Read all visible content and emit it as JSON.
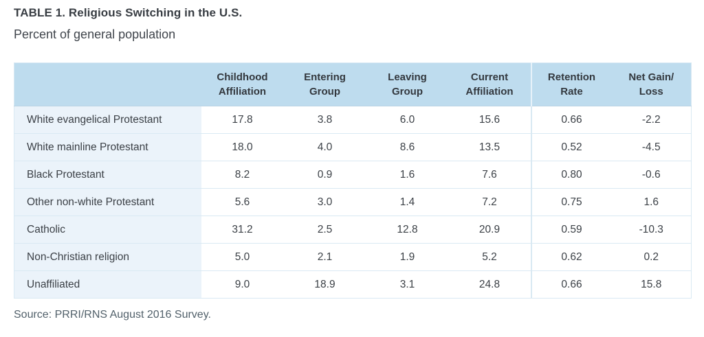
{
  "title": "TABLE 1. Religious Switching in the U.S.",
  "subtitle": "Percent of general population",
  "source": "Source: PRRI/RNS August 2016 Survey.",
  "colors": {
    "header_bg": "#bedcee",
    "label_col_bg": "#ebf3fa",
    "grid_line": "#d9e9f3",
    "text": "#3b4046",
    "source_text": "#51606a"
  },
  "table": {
    "columns": [
      {
        "line1": "",
        "line2": ""
      },
      {
        "line1": "Childhood",
        "line2": "Affiliation"
      },
      {
        "line1": "Entering",
        "line2": "Group"
      },
      {
        "line1": "Leaving",
        "line2": "Group"
      },
      {
        "line1": "Current",
        "line2": "Affiliation"
      },
      {
        "line1": "Retention",
        "line2": "Rate"
      },
      {
        "line1": "Net Gain/",
        "line2": "Loss"
      }
    ],
    "rows": [
      {
        "label": "White evangelical Protestant",
        "values": [
          "17.8",
          "3.8",
          "6.0",
          "15.6",
          "0.66",
          "-2.2"
        ]
      },
      {
        "label": "White mainline Protestant",
        "values": [
          "18.0",
          "4.0",
          "8.6",
          "13.5",
          "0.52",
          "-4.5"
        ]
      },
      {
        "label": "Black Protestant",
        "values": [
          "8.2",
          "0.9",
          "1.6",
          "7.6",
          "0.80",
          "-0.6"
        ]
      },
      {
        "label": "Other non-white Protestant",
        "values": [
          "5.6",
          "3.0",
          "1.4",
          "7.2",
          "0.75",
          "1.6"
        ]
      },
      {
        "label": "Catholic",
        "values": [
          "31.2",
          "2.5",
          "12.8",
          "20.9",
          "0.59",
          "-10.3"
        ]
      },
      {
        "label": "Non-Christian religion",
        "values": [
          "5.0",
          "2.1",
          "1.9",
          "5.2",
          "0.62",
          "0.2"
        ]
      },
      {
        "label": "Unaffiliated",
        "values": [
          "9.0",
          "18.9",
          "3.1",
          "24.8",
          "0.66",
          "15.8"
        ]
      }
    ]
  },
  "chart_data": {
    "type": "table",
    "title": "TABLE 1. Religious Switching in the U.S.",
    "subtitle": "Percent of general population",
    "columns": [
      "Childhood Affiliation",
      "Entering Group",
      "Leaving Group",
      "Current Affiliation",
      "Retention Rate",
      "Net Gain/Loss"
    ],
    "rows": [
      {
        "group": "White evangelical Protestant",
        "childhood_affiliation": 17.8,
        "entering_group": 3.8,
        "leaving_group": 6.0,
        "current_affiliation": 15.6,
        "retention_rate": 0.66,
        "net_gain_loss": -2.2
      },
      {
        "group": "White mainline Protestant",
        "childhood_affiliation": 18.0,
        "entering_group": 4.0,
        "leaving_group": 8.6,
        "current_affiliation": 13.5,
        "retention_rate": 0.52,
        "net_gain_loss": -4.5
      },
      {
        "group": "Black Protestant",
        "childhood_affiliation": 8.2,
        "entering_group": 0.9,
        "leaving_group": 1.6,
        "current_affiliation": 7.6,
        "retention_rate": 0.8,
        "net_gain_loss": -0.6
      },
      {
        "group": "Other non-white Protestant",
        "childhood_affiliation": 5.6,
        "entering_group": 3.0,
        "leaving_group": 1.4,
        "current_affiliation": 7.2,
        "retention_rate": 0.75,
        "net_gain_loss": 1.6
      },
      {
        "group": "Catholic",
        "childhood_affiliation": 31.2,
        "entering_group": 2.5,
        "leaving_group": 12.8,
        "current_affiliation": 20.9,
        "retention_rate": 0.59,
        "net_gain_loss": -10.3
      },
      {
        "group": "Non-Christian religion",
        "childhood_affiliation": 5.0,
        "entering_group": 2.1,
        "leaving_group": 1.9,
        "current_affiliation": 5.2,
        "retention_rate": 0.62,
        "net_gain_loss": 0.2
      },
      {
        "group": "Unaffiliated",
        "childhood_affiliation": 9.0,
        "entering_group": 18.9,
        "leaving_group": 3.1,
        "current_affiliation": 24.8,
        "retention_rate": 0.66,
        "net_gain_loss": 15.8
      }
    ],
    "source": "Source: PRRI/RNS August 2016 Survey."
  }
}
